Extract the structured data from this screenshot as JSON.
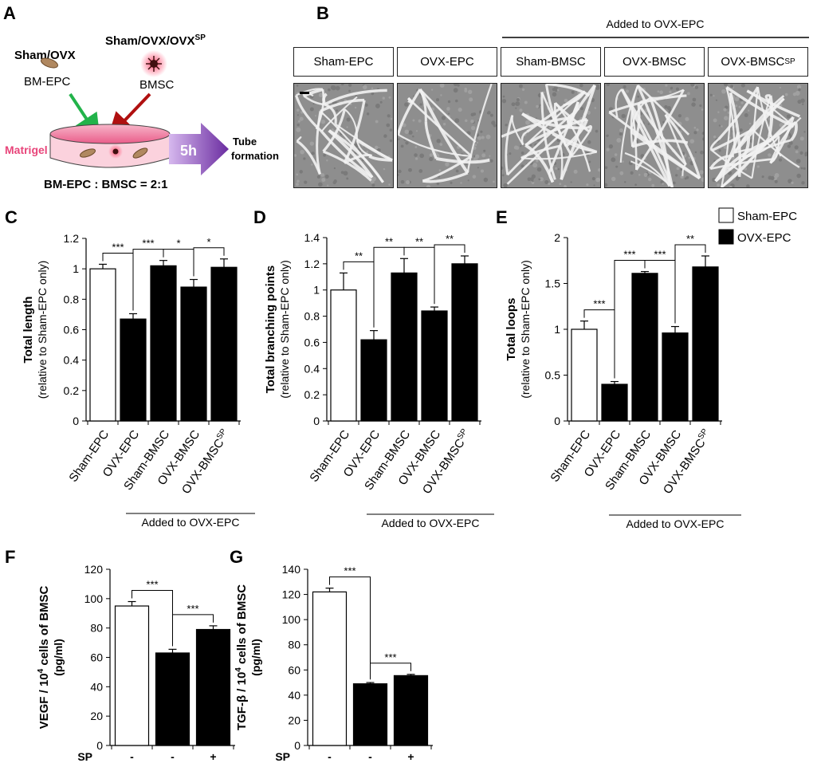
{
  "panel_a": {
    "letter": "A",
    "epc_group": "Sham/OVX",
    "epc_label": "BM-EPC",
    "bmsc_group": "Sham/OVX/OVX",
    "bmsc_group_sup": "SP",
    "bmsc_label": "BMSC",
    "matrigel": "Matrigel",
    "time": "5h",
    "outcome_line1": "Tube",
    "outcome_line2": "formation",
    "ratio": "BM-EPC : BMSC = 2:1"
  },
  "panel_b": {
    "letter": "B",
    "header": "Added to OVX-EPC",
    "labels": [
      "Sham-EPC",
      "OVX-EPC",
      "Sham-BMSC",
      "OVX-BMSC",
      "OVX-BMSC"
    ],
    "last_label_sup": "SP"
  },
  "colors": {
    "white_bar": "#ffffff",
    "black_bar": "#000000",
    "matrigel": "#e8457a",
    "arrow": "#6a2ca0",
    "green_arrow": "#22b34a",
    "red_arrow": "#b01010"
  },
  "chart_data": [
    {
      "panel": "C",
      "type": "bar",
      "ylabel": "Total length",
      "ylabel2": "(relative to Sham-EPC only)",
      "ylim": [
        0,
        1.2
      ],
      "yticks": [
        "0",
        "0.2",
        "0.4",
        "0.6",
        "0.8",
        "1",
        "1.2"
      ],
      "categories": [
        "Sham-EPC",
        "OVX-EPC",
        "Sham-BMSC",
        "OVX-BMSC",
        "OVX-BMSC"
      ],
      "last_category_sup": "SP",
      "values": [
        1.0,
        0.67,
        1.02,
        0.88,
        1.01
      ],
      "errors": [
        0.03,
        0.035,
        0.035,
        0.05,
        0.055
      ],
      "fills": [
        "white",
        "black",
        "black",
        "black",
        "black"
      ],
      "group_label": "Added to OVX-EPC",
      "significance": [
        {
          "from": 0,
          "to": 1,
          "label": "***"
        },
        {
          "from": 1,
          "to": 2,
          "label": "***"
        },
        {
          "from": 2,
          "to": 3,
          "label": "*"
        },
        {
          "from": 3,
          "to": 4,
          "label": "*"
        }
      ]
    },
    {
      "panel": "D",
      "type": "bar",
      "ylabel": "Total branching points",
      "ylabel2": "(relative to Sham-EPC only)",
      "ylim": [
        0,
        1.4
      ],
      "yticks": [
        "0",
        "0.2",
        "0.4",
        "0.6",
        "0.8",
        "1",
        "1.2",
        "1.4"
      ],
      "categories": [
        "Sham-EPC",
        "OVX-EPC",
        "Sham-BMSC",
        "OVX-BMSC",
        "OVX-BMSC"
      ],
      "last_category_sup": "SP",
      "values": [
        1.0,
        0.62,
        1.13,
        0.84,
        1.2
      ],
      "errors": [
        0.13,
        0.07,
        0.11,
        0.03,
        0.06
      ],
      "fills": [
        "white",
        "black",
        "black",
        "black",
        "black"
      ],
      "group_label": "Added to OVX-EPC",
      "significance": [
        {
          "from": 0,
          "to": 1,
          "label": "**"
        },
        {
          "from": 1,
          "to": 2,
          "label": "**"
        },
        {
          "from": 2,
          "to": 3,
          "label": "**"
        },
        {
          "from": 3,
          "to": 4,
          "label": "**"
        }
      ]
    },
    {
      "panel": "E",
      "type": "bar",
      "ylabel": "Total loops",
      "ylabel2": "(relative to Sham-EPC only)",
      "ylim": [
        0,
        2
      ],
      "yticks": [
        "0",
        "0.5",
        "1",
        "1.5",
        "2"
      ],
      "categories": [
        "Sham-EPC",
        "OVX-EPC",
        "Sham-BMSC",
        "OVX-BMSC",
        "OVX-BMSC"
      ],
      "last_category_sup": "SP",
      "values": [
        1.0,
        0.4,
        1.61,
        0.96,
        1.68
      ],
      "errors": [
        0.09,
        0.03,
        0.02,
        0.07,
        0.12
      ],
      "fills": [
        "white",
        "black",
        "black",
        "black",
        "black"
      ],
      "group_label": "Added to OVX-EPC",
      "legend": [
        "Sham-EPC",
        "OVX-EPC"
      ],
      "legend_position": "top-right",
      "significance": [
        {
          "from": 0,
          "to": 1,
          "label": "***"
        },
        {
          "from": 1,
          "to": 2,
          "label": "***"
        },
        {
          "from": 2,
          "to": 3,
          "label": "***"
        },
        {
          "from": 3,
          "to": 4,
          "label": "**"
        }
      ]
    },
    {
      "panel": "F",
      "type": "bar",
      "ylabel": "VEGF / 10",
      "ylabel_sup": "4",
      "ylabel_rest": " cells of BMSC",
      "ylabel2": "(pg/ml)",
      "ylim": [
        0,
        120
      ],
      "yticks": [
        "0",
        "20",
        "40",
        "60",
        "80",
        "100",
        "120"
      ],
      "categories": [
        "-",
        "-",
        "+"
      ],
      "xtitle": "SP",
      "values": [
        95,
        63,
        79
      ],
      "errors": [
        3,
        2.5,
        2.5
      ],
      "fills": [
        "white",
        "black",
        "black"
      ],
      "significance": [
        {
          "from": 0,
          "to": 1,
          "label": "***"
        },
        {
          "from": 1,
          "to": 2,
          "label": "***"
        }
      ]
    },
    {
      "panel": "G",
      "type": "bar",
      "ylabel": "TGF-β / 10",
      "ylabel_sup": "4",
      "ylabel_rest": " cells of BMSC",
      "ylabel2": "(pg/ml)",
      "ylim": [
        0,
        140
      ],
      "yticks": [
        "0",
        "20",
        "40",
        "60",
        "80",
        "100",
        "120",
        "140"
      ],
      "categories": [
        "-",
        "-",
        "+"
      ],
      "xtitle": "SP",
      "values": [
        122,
        49,
        55.5
      ],
      "errors": [
        3,
        1,
        1
      ],
      "fills": [
        "white",
        "black",
        "black"
      ],
      "significance": [
        {
          "from": 0,
          "to": 1,
          "label": "***"
        },
        {
          "from": 1,
          "to": 2,
          "label": "***"
        }
      ]
    }
  ]
}
